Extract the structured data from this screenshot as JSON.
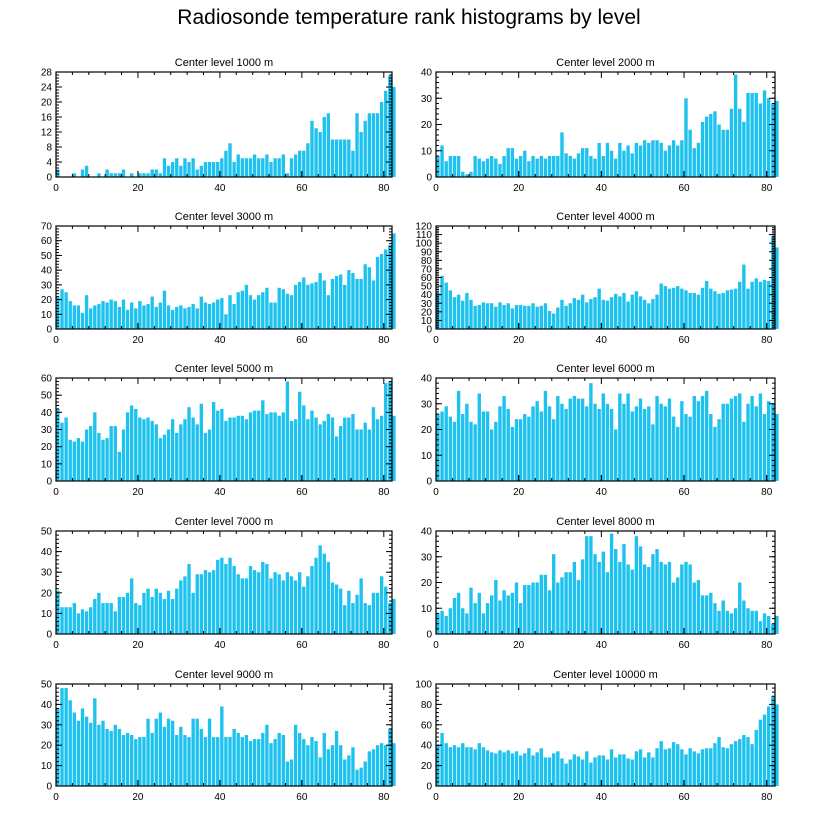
{
  "title": "Radiosonde temperature rank histograms by level",
  "bar_color": "#1ec2ee",
  "chart_data": [
    {
      "type": "bar",
      "title": "Center level 1000 m",
      "xlim": [
        0,
        82
      ],
      "ylim": [
        0,
        28
      ],
      "xticks": [
        0,
        20,
        40,
        60,
        80
      ],
      "yticks": [
        0,
        4,
        8,
        12,
        16,
        20,
        24,
        28
      ],
      "x_start": 0,
      "values": [
        2,
        0,
        0,
        0,
        1,
        0,
        2,
        3,
        0,
        0,
        1,
        0,
        2,
        1,
        1,
        1,
        2,
        0,
        1,
        0,
        1,
        1,
        1,
        2,
        2,
        1,
        5,
        3,
        4,
        5,
        3,
        5,
        4,
        5,
        2,
        3,
        4,
        4,
        4,
        4,
        5,
        7,
        9,
        4,
        6,
        5,
        5,
        5,
        6,
        5,
        5,
        6,
        4,
        5,
        5,
        6,
        1,
        5,
        6,
        7,
        7,
        9,
        15,
        13,
        12,
        16,
        17,
        10,
        10,
        10,
        10,
        10,
        7,
        17,
        12,
        15,
        17,
        17,
        17,
        20,
        23,
        27,
        24
      ]
    },
    {
      "type": "bar",
      "title": "Center level 2000 m",
      "xlim": [
        0,
        82
      ],
      "ylim": [
        0,
        40
      ],
      "xticks": [
        0,
        20,
        40,
        60,
        80
      ],
      "yticks": [
        0,
        10,
        20,
        30,
        40
      ],
      "x_start": 0,
      "values": [
        8,
        12,
        6,
        8,
        8,
        8,
        2,
        1,
        2,
        8,
        7,
        6,
        7,
        8,
        7,
        5,
        8,
        11,
        11,
        7,
        8,
        10,
        6,
        8,
        7,
        8,
        7,
        8,
        8,
        8,
        17,
        9,
        8,
        7,
        9,
        11,
        11,
        8,
        7,
        13,
        8,
        13,
        10,
        7,
        13,
        10,
        12,
        9,
        13,
        12,
        14,
        13,
        14,
        14,
        13,
        10,
        12,
        14,
        12,
        14,
        30,
        18,
        11,
        13,
        21,
        23,
        24,
        25,
        20,
        18,
        18,
        26,
        39,
        26,
        21,
        32,
        32,
        32,
        28,
        33,
        30,
        28,
        29
      ]
    },
    {
      "type": "bar",
      "title": "Center level 3000 m",
      "xlim": [
        0,
        82
      ],
      "ylim": [
        0,
        70
      ],
      "xticks": [
        0,
        20,
        40,
        60,
        80
      ],
      "yticks": [
        0,
        10,
        20,
        30,
        40,
        50,
        60,
        70
      ],
      "x_start": 0,
      "values": [
        22,
        27,
        25,
        19,
        16,
        16,
        11,
        23,
        14,
        16,
        17,
        19,
        18,
        20,
        19,
        15,
        20,
        13,
        18,
        14,
        19,
        16,
        17,
        22,
        15,
        18,
        26,
        16,
        13,
        15,
        16,
        14,
        15,
        17,
        14,
        22,
        18,
        17,
        18,
        20,
        21,
        10,
        23,
        17,
        25,
        26,
        30,
        23,
        20,
        23,
        25,
        28,
        18,
        18,
        28,
        27,
        24,
        23,
        30,
        32,
        35,
        30,
        31,
        32,
        38,
        33,
        23,
        34,
        36,
        37,
        30,
        40,
        38,
        34,
        34,
        44,
        42,
        33,
        49,
        51,
        54,
        57,
        65
      ]
    },
    {
      "type": "bar",
      "title": "Center level 4000 m",
      "xlim": [
        0,
        82
      ],
      "ylim": [
        0,
        120
      ],
      "xticks": [
        0,
        20,
        40,
        60,
        80
      ],
      "yticks": [
        0,
        10,
        20,
        30,
        40,
        50,
        60,
        70,
        80,
        90,
        100,
        110,
        120
      ],
      "x_start": 0,
      "values": [
        42,
        62,
        54,
        45,
        37,
        40,
        33,
        42,
        34,
        27,
        28,
        31,
        30,
        30,
        26,
        31,
        28,
        30,
        24,
        28,
        28,
        27,
        27,
        30,
        26,
        27,
        30,
        21,
        18,
        25,
        34,
        27,
        30,
        36,
        34,
        40,
        31,
        35,
        37,
        47,
        34,
        33,
        37,
        41,
        38,
        42,
        32,
        40,
        44,
        38,
        34,
        30,
        35,
        40,
        53,
        50,
        47,
        48,
        50,
        47,
        45,
        42,
        42,
        40,
        48,
        56,
        47,
        44,
        41,
        42,
        45,
        46,
        47,
        55,
        75,
        47,
        55,
        59,
        55,
        57,
        56,
        108,
        95
      ]
    },
    {
      "type": "bar",
      "title": "Center level 5000 m",
      "xlim": [
        0,
        82
      ],
      "ylim": [
        0,
        60
      ],
      "xticks": [
        0,
        20,
        40,
        60,
        80
      ],
      "yticks": [
        0,
        10,
        20,
        30,
        40,
        50,
        60
      ],
      "x_start": 0,
      "values": [
        42,
        34,
        37,
        24,
        23,
        25,
        23,
        30,
        32,
        40,
        28,
        24,
        25,
        32,
        32,
        17,
        30,
        40,
        44,
        42,
        37,
        36,
        37,
        35,
        33,
        25,
        27,
        30,
        36,
        28,
        33,
        36,
        43,
        37,
        33,
        45,
        28,
        30,
        46,
        41,
        42,
        35,
        37,
        37,
        38,
        38,
        36,
        40,
        41,
        41,
        47,
        39,
        40,
        40,
        38,
        40,
        58,
        35,
        36,
        52,
        44,
        36,
        41,
        37,
        33,
        35,
        39,
        37,
        26,
        32,
        37,
        37,
        39,
        30,
        30,
        34,
        30,
        43,
        36,
        38,
        57,
        58,
        38
      ]
    },
    {
      "type": "bar",
      "title": "Center level 6000 m",
      "xlim": [
        0,
        82
      ],
      "ylim": [
        0,
        40
      ],
      "xticks": [
        0,
        20,
        40,
        60,
        80
      ],
      "yticks": [
        0,
        10,
        20,
        30,
        40
      ],
      "x_start": 0,
      "values": [
        26,
        27,
        29,
        25,
        23,
        35,
        26,
        30,
        23,
        22,
        34,
        27,
        27,
        20,
        23,
        29,
        33,
        28,
        21,
        24,
        24,
        26,
        25,
        29,
        31,
        27,
        35,
        29,
        24,
        33,
        30,
        28,
        32,
        33,
        32,
        32,
        29,
        38,
        30,
        28,
        34,
        30,
        28,
        20,
        34,
        30,
        34,
        27,
        29,
        32,
        28,
        29,
        22,
        33,
        30,
        29,
        32,
        25,
        21,
        31,
        26,
        25,
        33,
        31,
        33,
        35,
        26,
        21,
        24,
        30,
        30,
        32,
        33,
        34,
        23,
        30,
        33,
        29,
        34,
        26,
        31,
        30,
        26
      ]
    },
    {
      "type": "bar",
      "title": "Center level 7000 m",
      "xlim": [
        0,
        82
      ],
      "ylim": [
        0,
        50
      ],
      "xticks": [
        0,
        20,
        40,
        60,
        80
      ],
      "yticks": [
        0,
        10,
        20,
        30,
        40,
        50
      ],
      "x_start": 0,
      "values": [
        21,
        13,
        13,
        13,
        15,
        10,
        12,
        11,
        13,
        17,
        20,
        15,
        15,
        15,
        11,
        18,
        18,
        20,
        27,
        15,
        14,
        20,
        22,
        18,
        22,
        20,
        17,
        21,
        17,
        22,
        26,
        28,
        34,
        20,
        29,
        29,
        31,
        30,
        31,
        36,
        37,
        34,
        37,
        33,
        29,
        27,
        27,
        33,
        31,
        30,
        35,
        34,
        27,
        30,
        29,
        26,
        30,
        28,
        26,
        30,
        23,
        28,
        33,
        37,
        43,
        39,
        35,
        25,
        24,
        22,
        14,
        21,
        15,
        19,
        27,
        15,
        14,
        20,
        20,
        28,
        23,
        15,
        17
      ]
    },
    {
      "type": "bar",
      "title": "Center level 8000 m",
      "xlim": [
        0,
        82
      ],
      "ylim": [
        0,
        40
      ],
      "xticks": [
        0,
        20,
        40,
        60,
        80
      ],
      "yticks": [
        0,
        10,
        20,
        30,
        40
      ],
      "x_start": 0,
      "values": [
        8,
        9,
        7,
        10,
        14,
        16,
        10,
        8,
        18,
        12,
        16,
        8,
        12,
        15,
        21,
        13,
        17,
        15,
        16,
        20,
        12,
        19,
        19,
        20,
        20,
        23,
        23,
        17,
        31,
        20,
        22,
        24,
        24,
        28,
        21,
        29,
        38,
        38,
        31,
        28,
        32,
        24,
        39,
        33,
        28,
        35,
        27,
        25,
        38,
        34,
        27,
        26,
        31,
        33,
        28,
        27,
        28,
        20,
        22,
        27,
        28,
        27,
        20,
        21,
        15,
        15,
        16,
        12,
        9,
        13,
        9,
        8,
        10,
        20,
        13,
        10,
        9,
        9,
        5,
        8,
        7,
        4,
        7
      ]
    },
    {
      "type": "bar",
      "title": "Center level 9000 m",
      "xlim": [
        0,
        82
      ],
      "ylim": [
        0,
        50
      ],
      "xticks": [
        0,
        20,
        40,
        60,
        80
      ],
      "yticks": [
        0,
        10,
        20,
        30,
        40,
        50
      ],
      "x_start": 0,
      "values": [
        38,
        48,
        48,
        42,
        36,
        32,
        38,
        34,
        31,
        43,
        30,
        32,
        28,
        27,
        30,
        28,
        25,
        26,
        25,
        23,
        24,
        24,
        33,
        26,
        33,
        36,
        29,
        33,
        32,
        25,
        29,
        25,
        24,
        33,
        33,
        28,
        24,
        33,
        24,
        24,
        39,
        24,
        24,
        28,
        26,
        24,
        25,
        22,
        23,
        23,
        26,
        30,
        21,
        23,
        26,
        25,
        12,
        13,
        30,
        26,
        23,
        20,
        24,
        22,
        14,
        26,
        18,
        20,
        27,
        20,
        13,
        15,
        19,
        8,
        9,
        12,
        17,
        18,
        20,
        21,
        20,
        28,
        21
      ]
    },
    {
      "type": "bar",
      "title": "Center level 10000 m",
      "xlim": [
        0,
        82
      ],
      "ylim": [
        0,
        100
      ],
      "xticks": [
        0,
        20,
        40,
        60,
        80
      ],
      "yticks": [
        0,
        20,
        40,
        60,
        80,
        100
      ],
      "x_start": 0,
      "values": [
        40,
        52,
        42,
        38,
        40,
        38,
        42,
        38,
        38,
        36,
        42,
        38,
        35,
        33,
        32,
        35,
        33,
        35,
        32,
        34,
        30,
        32,
        37,
        30,
        33,
        37,
        28,
        28,
        32,
        34,
        27,
        22,
        26,
        31,
        29,
        26,
        34,
        23,
        28,
        30,
        30,
        26,
        36,
        28,
        31,
        31,
        27,
        26,
        34,
        36,
        28,
        33,
        28,
        37,
        44,
        36,
        37,
        43,
        41,
        36,
        31,
        37,
        34,
        32,
        36,
        37,
        37,
        42,
        48,
        38,
        37,
        41,
        44,
        46,
        50,
        48,
        41,
        55,
        65,
        70,
        78,
        88,
        80
      ]
    }
  ]
}
